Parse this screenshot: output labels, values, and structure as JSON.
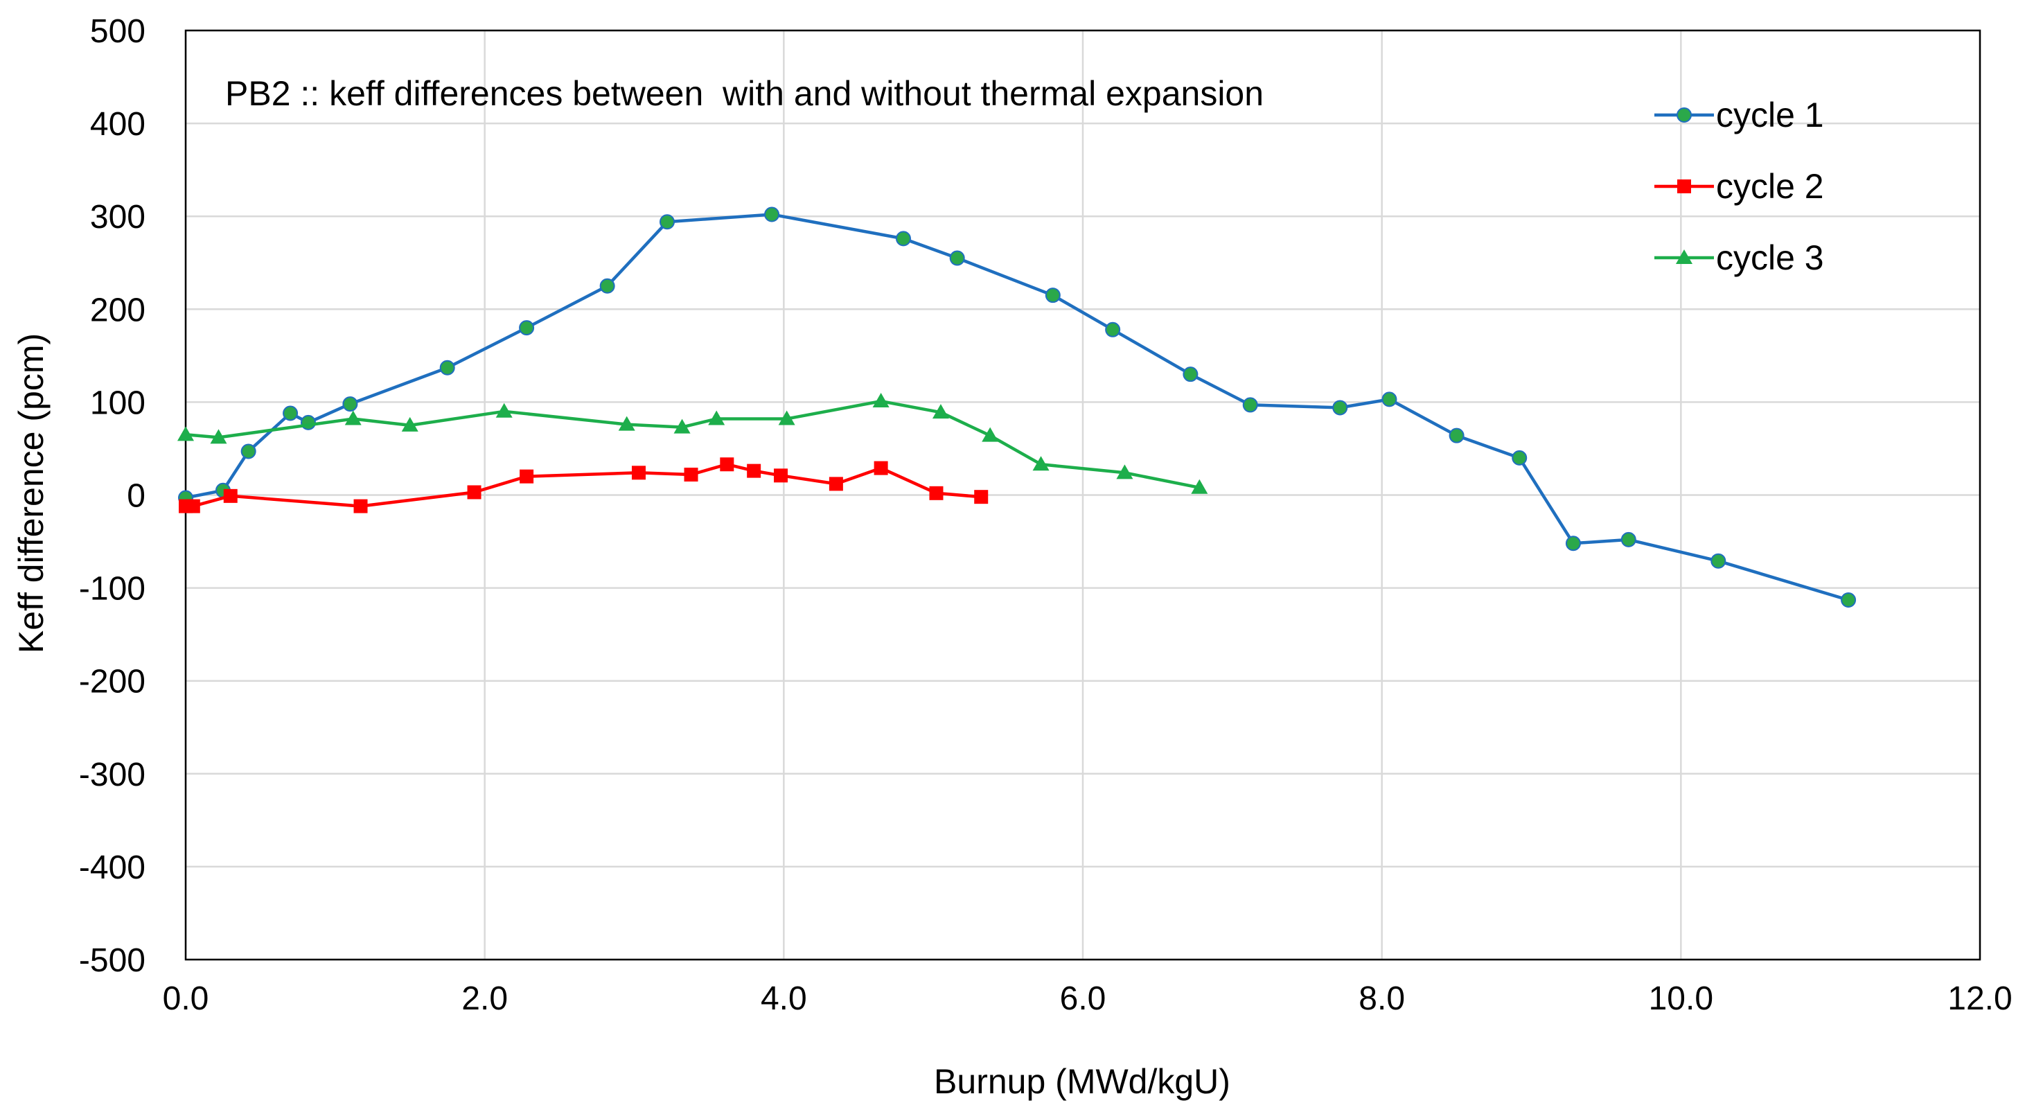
{
  "chart_data": {
    "type": "line",
    "title": "PB2 :: keff differences between  with and without thermal expansion",
    "xlabel": "Burnup (MWd/kgU)",
    "ylabel": "Keff difference (pcm)",
    "xlim": [
      0,
      12
    ],
    "ylim": [
      -500,
      500
    ],
    "xticks": [
      0,
      2,
      4,
      6,
      8,
      10,
      12
    ],
    "xtick_labels": [
      "0.0",
      "2.0",
      "4.0",
      "6.0",
      "8.0",
      "10.0",
      "12.0"
    ],
    "yticks": [
      500,
      400,
      300,
      200,
      100,
      0,
      -100,
      -200,
      -300,
      -400,
      -500
    ],
    "ytick_labels": [
      "500",
      "400",
      "300",
      "200",
      "100",
      "0",
      "-100",
      "-200",
      "-300",
      "-400",
      "-500"
    ],
    "grid": true,
    "legend_position": "top-right",
    "series": [
      {
        "name": "cycle 1",
        "color": "#1F6FBF",
        "marker_color": "#2BA84A",
        "marker": "circle",
        "x": [
          0.0,
          0.25,
          0.42,
          0.7,
          0.82,
          1.1,
          1.75,
          2.28,
          2.82,
          3.22,
          3.92,
          4.8,
          5.16,
          5.8,
          6.2,
          6.72,
          7.12,
          7.72,
          8.05,
          8.5,
          8.92,
          9.28,
          9.65,
          10.25,
          11.12
        ],
        "y": [
          -3,
          5,
          47,
          88,
          78,
          98,
          137,
          180,
          225,
          294,
          302,
          276,
          255,
          215,
          178,
          130,
          97,
          94,
          103,
          64,
          40,
          -52,
          -48,
          -71,
          -113
        ]
      },
      {
        "name": "cycle 2",
        "color": "#FF0000",
        "marker_color": "#FF0000",
        "marker": "square",
        "x": [
          0.0,
          0.05,
          0.3,
          1.17,
          1.93,
          2.28,
          3.03,
          3.38,
          3.62,
          3.8,
          3.98,
          4.35,
          4.65,
          5.02,
          5.32
        ],
        "y": [
          -12,
          -12,
          -1,
          -12,
          3,
          20,
          24,
          22,
          33,
          26,
          21,
          12,
          29,
          2,
          -2
        ]
      },
      {
        "name": "cycle 3",
        "color": "#1DAE4B",
        "marker_color": "#1DAE4B",
        "marker": "triangle",
        "x": [
          0.0,
          0.22,
          1.12,
          1.5,
          2.13,
          2.95,
          3.32,
          3.55,
          4.02,
          4.65,
          5.05,
          5.38,
          5.72,
          6.28,
          6.78
        ],
        "y": [
          65,
          62,
          82,
          75,
          90,
          76,
          73,
          82,
          82,
          101,
          89,
          64,
          33,
          24,
          8
        ]
      }
    ]
  }
}
